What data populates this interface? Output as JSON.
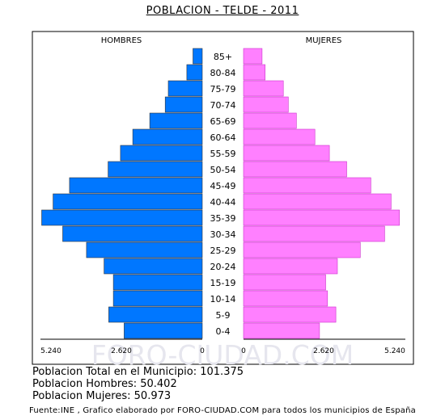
{
  "title": "POBLACION - TELDE - 2011",
  "watermark": "FORO-CIUDAD.COM",
  "stats": {
    "total": "Poblacion Total en el Municipio: 101.375",
    "men": "Poblacion Hombres: 50.402",
    "women": "Poblacion Mujeres: 50.973"
  },
  "footer": "Fuente:INE , Grafico elaborado por FORO-CIUDAD.COM para todos los municipios de España",
  "colors": {
    "men_fill": "#0077ff",
    "women_fill": "#ff80ff",
    "bar_stroke": "#333333",
    "frame": "#000000",
    "watermark": "#e6e6ee"
  },
  "chart_data": {
    "type": "bar",
    "orientation": "horizontal-pyramid",
    "categories": [
      "85+",
      "80-84",
      "75-79",
      "70-74",
      "65-69",
      "60-64",
      "55-59",
      "50-54",
      "45-49",
      "40-44",
      "35-39",
      "30-34",
      "25-29",
      "20-24",
      "15-19",
      "10-14",
      "5-9",
      "0-4"
    ],
    "series": [
      {
        "name": "HOMBRES",
        "values": [
          300,
          500,
          1100,
          1200,
          1700,
          2250,
          2650,
          3050,
          4300,
          4830,
          5200,
          4520,
          3750,
          3180,
          2880,
          2880,
          3030,
          2530
        ]
      },
      {
        "name": "MUJERES",
        "values": [
          600,
          700,
          1290,
          1450,
          1710,
          2310,
          2780,
          3340,
          4120,
          4780,
          5050,
          4570,
          3780,
          3040,
          2660,
          2720,
          2990,
          2460
        ]
      }
    ],
    "xlim": [
      0,
      5240
    ],
    "tick_labels": [
      "5.240",
      "2.620",
      "0",
      "0",
      "2.620",
      "5.240"
    ]
  }
}
